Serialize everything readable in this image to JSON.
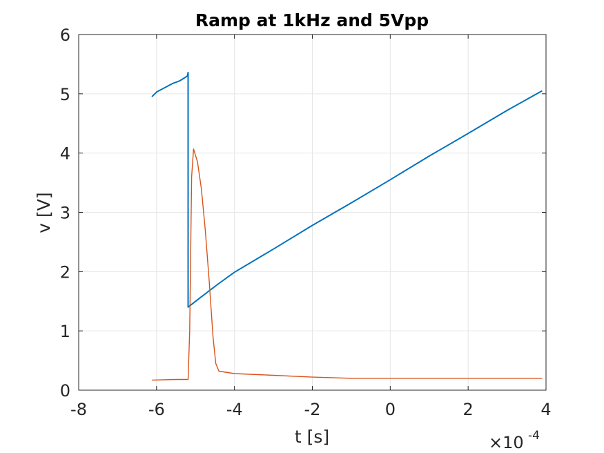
{
  "chart_data": {
    "type": "line",
    "title": "Ramp at 1kHz and 5Vpp",
    "xlabel": "t [s]",
    "ylabel": "v [V]",
    "x_exponent_label": "×10",
    "x_exponent_power": "-4",
    "x_scale": 0.0001,
    "xlim": [
      -0.0008,
      0.0004
    ],
    "ylim": [
      0,
      6
    ],
    "xticks": [
      -8,
      -6,
      -4,
      -2,
      0,
      2,
      4
    ],
    "yticks": [
      0,
      1,
      2,
      3,
      4,
      5,
      6
    ],
    "grid": true,
    "series": [
      {
        "color": "#0072BD",
        "points": [
          [
            -0.000612,
            4.95
          ],
          [
            -0.0006,
            5.03
          ],
          [
            -0.00058,
            5.1
          ],
          [
            -0.00056,
            5.17
          ],
          [
            -0.00054,
            5.22
          ],
          [
            -0.000521,
            5.3
          ],
          [
            -0.000519,
            5.36
          ],
          [
            -0.000519,
            1.4
          ],
          [
            -0.0005,
            1.5
          ],
          [
            -0.00048,
            1.6
          ],
          [
            -0.00046,
            1.7
          ],
          [
            -0.00044,
            1.8
          ],
          [
            -0.0004,
            1.99
          ],
          [
            -0.0003,
            2.38
          ],
          [
            -0.0002,
            2.78
          ],
          [
            -0.0001,
            3.16
          ],
          [
            0.0,
            3.55
          ],
          [
            0.0001,
            3.95
          ],
          [
            0.0002,
            4.33
          ],
          [
            0.0003,
            4.72
          ],
          [
            0.00039,
            5.05
          ]
        ]
      },
      {
        "color": "#D95319",
        "points": [
          [
            -0.000612,
            0.17
          ],
          [
            -0.00055,
            0.18
          ],
          [
            -0.000519,
            0.18
          ],
          [
            -0.000515,
            1.0
          ],
          [
            -0.00051,
            3.6
          ],
          [
            -0.000505,
            4.07
          ],
          [
            -0.000495,
            3.85
          ],
          [
            -0.000485,
            3.4
          ],
          [
            -0.000475,
            2.7
          ],
          [
            -0.000465,
            1.85
          ],
          [
            -0.000455,
            0.9
          ],
          [
            -0.000448,
            0.45
          ],
          [
            -0.00044,
            0.32
          ],
          [
            -0.0004,
            0.28
          ],
          [
            -0.0003,
            0.25
          ],
          [
            -0.0002,
            0.22
          ],
          [
            -0.0001,
            0.2
          ],
          [
            0.0,
            0.2
          ],
          [
            0.0001,
            0.2
          ],
          [
            0.0002,
            0.2
          ],
          [
            0.0003,
            0.2
          ],
          [
            0.00039,
            0.2
          ]
        ]
      }
    ]
  }
}
